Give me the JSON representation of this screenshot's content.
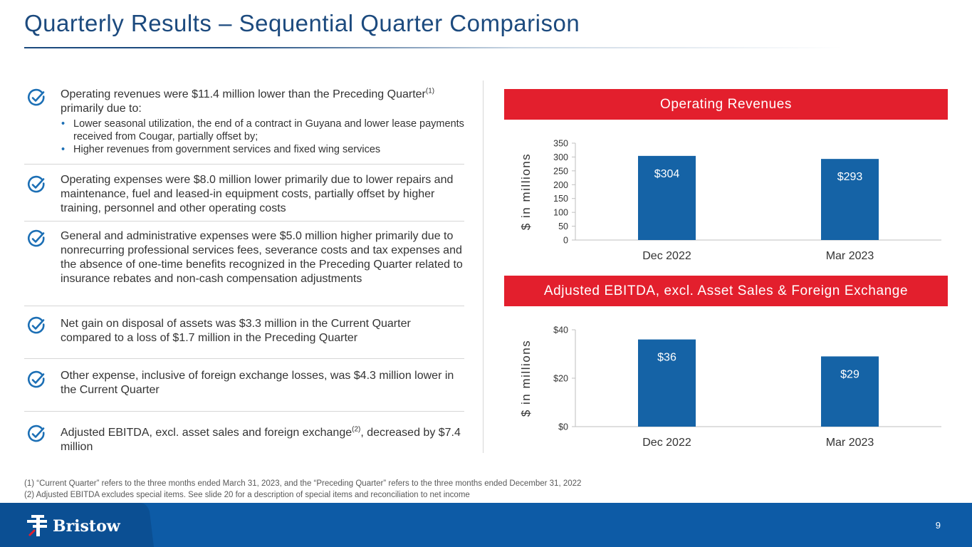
{
  "title": "Quarterly Results – Sequential Quarter Comparison",
  "bullets": [
    {
      "text": "Operating revenues were $11.4 million lower than the Preceding Quarter",
      "superscript": "(1)",
      "text_after": " primarily due to:",
      "sub_items": [
        "Lower seasonal utilization, the end of a contract in Guyana and lower lease payments received from Cougar, partially offset by;",
        "Higher revenues from government services and fixed wing services"
      ]
    },
    {
      "text": "Operating expenses were $8.0 million lower primarily due to lower repairs and maintenance, fuel and leased-in equipment costs, partially offset by higher training, personnel and other operating costs"
    },
    {
      "text": "General and administrative expenses were $5.0 million higher primarily due to nonrecurring professional services fees, severance costs and tax expenses and the absence of one-time benefits recognized in the Preceding Quarter related to insurance rebates and non-cash compensation adjustments"
    },
    {
      "text": "Net gain on disposal of assets was $3.3 million in the Current Quarter compared to a loss of $1.7 million in the Preceding Quarter"
    },
    {
      "text": "Other expense, inclusive of foreign exchange losses, was $4.3 million lower in the Current Quarter"
    },
    {
      "text": "Adjusted EBITDA, excl. asset sales and foreign exchange",
      "superscript": "(2)",
      "text_after": ", decreased by $7.4 million"
    }
  ],
  "chart_data": [
    {
      "type": "bar",
      "title": "Operating Revenues",
      "categories": [
        "Dec 2022",
        "Mar 2023"
      ],
      "values": [
        304,
        293
      ],
      "data_labels": [
        "$304",
        "$293"
      ],
      "ylabel": "$ in millions",
      "ylim": [
        0,
        350
      ],
      "yticks": [
        0,
        50,
        100,
        150,
        200,
        250,
        300,
        350
      ],
      "ytick_labels": [
        "0",
        "50",
        "100",
        "150",
        "200",
        "250",
        "300",
        "350"
      ],
      "grid": false,
      "bar_color": "#1563a6"
    },
    {
      "type": "bar",
      "title": "Adjusted EBITDA, excl. Asset Sales & Foreign Exchange",
      "categories": [
        "Dec 2022",
        "Mar 2023"
      ],
      "values": [
        36,
        29
      ],
      "data_labels": [
        "$36",
        "$29"
      ],
      "ylabel": "$ in millions",
      "ylim": [
        0,
        40
      ],
      "yticks": [
        0,
        20,
        40
      ],
      "ytick_labels": [
        "$0",
        "$20",
        "$40"
      ],
      "grid": false,
      "bar_color": "#1563a6"
    }
  ],
  "footnotes": [
    "(1) “Current Quarter” refers to the three months ended March 31, 2023, and the “Preceding Quarter” refers to the three months ended December 31, 2022",
    "(2) Adjusted EBITDA excludes special items. See slide 20 for a description of special items and reconciliation to net income"
  ],
  "footer": {
    "logo_text": "Bristow",
    "page_number": "9"
  },
  "colors": {
    "title": "#1c4a7e",
    "accent_red": "#e31f2d",
    "bar": "#1563a6",
    "footer": "#0d5ba6"
  },
  "icons": {
    "bullet": "check-circle-icon",
    "logo": "bristow-logo-icon"
  }
}
